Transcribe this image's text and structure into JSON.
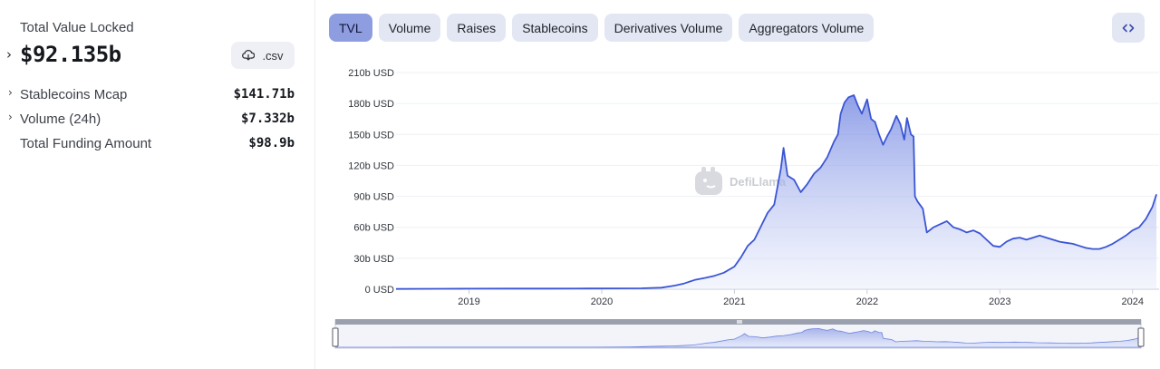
{
  "summary": {
    "tvl_label": "Total Value Locked",
    "tvl_value": "$92.135b",
    "csv_label": ".csv",
    "rows": [
      {
        "label": "Stablecoins Mcap",
        "value": "$141.71b",
        "expandable": true
      },
      {
        "label": "Volume (24h)",
        "value": "$7.332b",
        "expandable": true
      },
      {
        "label": "Total Funding Amount",
        "value": "$98.9b",
        "expandable": false
      }
    ]
  },
  "tabs": [
    "TVL",
    "Volume",
    "Raises",
    "Stablecoins",
    "Derivatives Volume",
    "Aggregators Volume"
  ],
  "active_tab": "TVL",
  "watermark": "DefiLlama",
  "colors": {
    "accent": "#3b55d4",
    "active_tab": "#8e9ddf",
    "tab": "#e3e7f4"
  },
  "chart_data": {
    "type": "area",
    "unit": "b USD",
    "y_ticks": [
      "0 USD",
      "30b USD",
      "60b USD",
      "90b USD",
      "120b USD",
      "150b USD",
      "180b USD",
      "210b USD"
    ],
    "x_ticks": [
      "2019",
      "2020",
      "2021",
      "2022",
      "2023",
      "2024"
    ],
    "ylim": [
      0,
      210
    ],
    "xlim": [
      2018.45,
      2024.2
    ],
    "grid": true,
    "series": [
      {
        "points": [
          [
            2018.45,
            0.3
          ],
          [
            2018.8,
            0.4
          ],
          [
            2019.0,
            0.5
          ],
          [
            2019.3,
            0.6
          ],
          [
            2019.6,
            0.6
          ],
          [
            2019.9,
            0.7
          ],
          [
            2020.1,
            0.8
          ],
          [
            2020.3,
            0.9
          ],
          [
            2020.45,
            1.5
          ],
          [
            2020.55,
            3.5
          ],
          [
            2020.62,
            5.5
          ],
          [
            2020.7,
            9
          ],
          [
            2020.78,
            11
          ],
          [
            2020.85,
            13
          ],
          [
            2020.92,
            16
          ],
          [
            2021.0,
            22
          ],
          [
            2021.05,
            31
          ],
          [
            2021.1,
            42
          ],
          [
            2021.15,
            48
          ],
          [
            2021.2,
            61
          ],
          [
            2021.25,
            74
          ],
          [
            2021.3,
            82
          ],
          [
            2021.35,
            117
          ],
          [
            2021.37,
            137
          ],
          [
            2021.4,
            110
          ],
          [
            2021.45,
            106
          ],
          [
            2021.5,
            94
          ],
          [
            2021.55,
            102
          ],
          [
            2021.6,
            112
          ],
          [
            2021.65,
            118
          ],
          [
            2021.7,
            128
          ],
          [
            2021.75,
            143
          ],
          [
            2021.78,
            150
          ],
          [
            2021.8,
            170
          ],
          [
            2021.83,
            181
          ],
          [
            2021.86,
            186
          ],
          [
            2021.9,
            188
          ],
          [
            2021.93,
            178
          ],
          [
            2021.96,
            170
          ],
          [
            2022.0,
            184
          ],
          [
            2022.03,
            165
          ],
          [
            2022.06,
            162
          ],
          [
            2022.09,
            150
          ],
          [
            2022.12,
            140
          ],
          [
            2022.15,
            148
          ],
          [
            2022.18,
            155
          ],
          [
            2022.22,
            168
          ],
          [
            2022.25,
            160
          ],
          [
            2022.28,
            145
          ],
          [
            2022.3,
            166
          ],
          [
            2022.33,
            150
          ],
          [
            2022.35,
            148
          ],
          [
            2022.36,
            90
          ],
          [
            2022.38,
            85
          ],
          [
            2022.42,
            78
          ],
          [
            2022.45,
            55
          ],
          [
            2022.5,
            60
          ],
          [
            2022.55,
            63
          ],
          [
            2022.6,
            66
          ],
          [
            2022.65,
            60
          ],
          [
            2022.7,
            58
          ],
          [
            2022.75,
            55
          ],
          [
            2022.8,
            57
          ],
          [
            2022.85,
            54
          ],
          [
            2022.9,
            48
          ],
          [
            2022.95,
            42
          ],
          [
            2023.0,
            41
          ],
          [
            2023.05,
            46
          ],
          [
            2023.1,
            49
          ],
          [
            2023.15,
            50
          ],
          [
            2023.2,
            48
          ],
          [
            2023.25,
            50
          ],
          [
            2023.3,
            52
          ],
          [
            2023.35,
            50
          ],
          [
            2023.4,
            48
          ],
          [
            2023.45,
            46
          ],
          [
            2023.5,
            45
          ],
          [
            2023.55,
            44
          ],
          [
            2023.6,
            42
          ],
          [
            2023.65,
            40
          ],
          [
            2023.7,
            39
          ],
          [
            2023.75,
            39
          ],
          [
            2023.8,
            41
          ],
          [
            2023.85,
            44
          ],
          [
            2023.9,
            48
          ],
          [
            2023.95,
            52
          ],
          [
            2024.0,
            57
          ],
          [
            2024.05,
            60
          ],
          [
            2024.1,
            68
          ],
          [
            2024.15,
            80
          ],
          [
            2024.18,
            92
          ]
        ]
      }
    ]
  }
}
